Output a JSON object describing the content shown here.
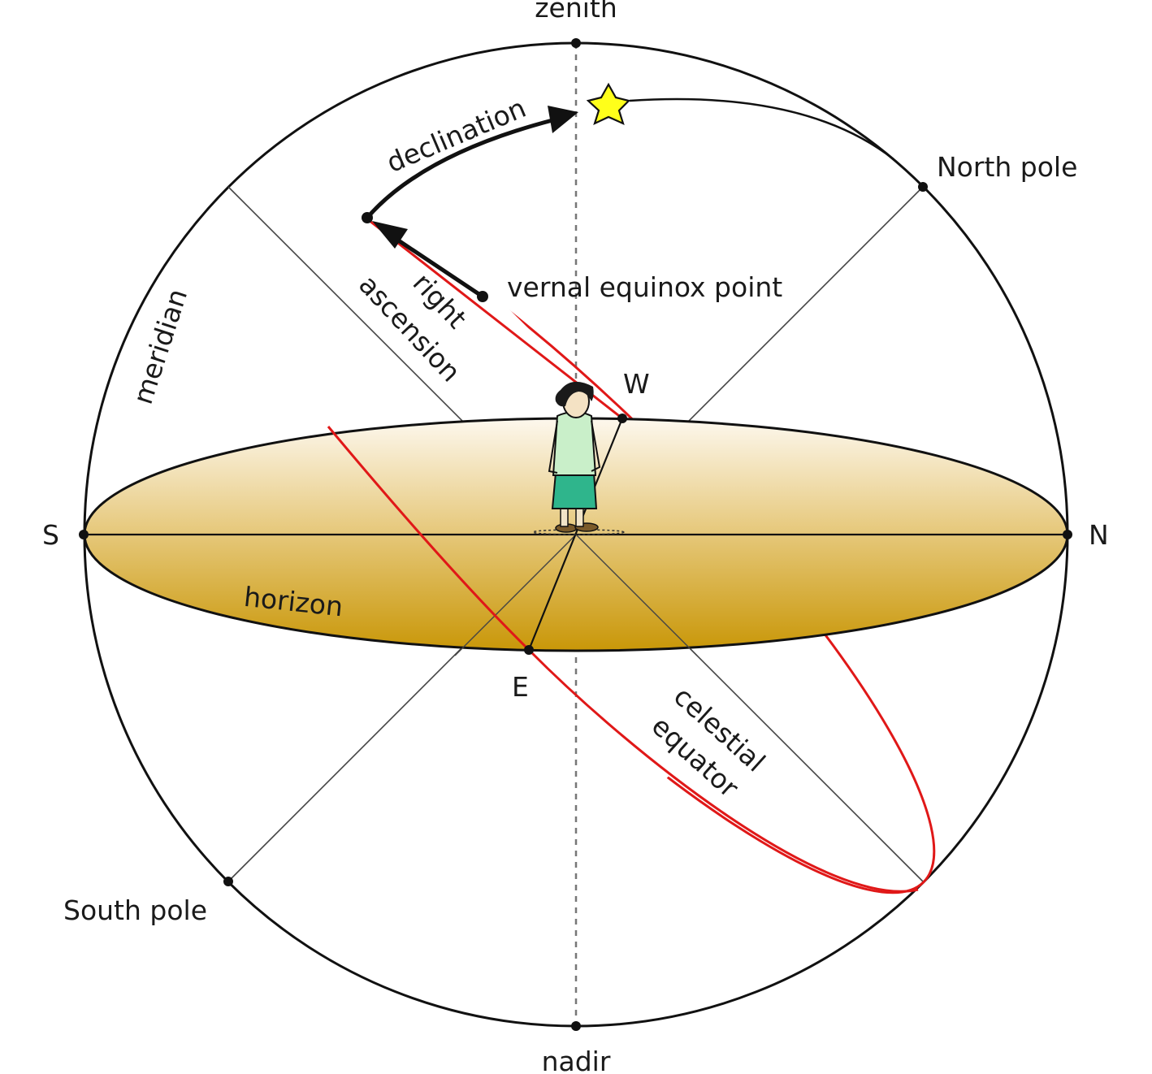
{
  "labels": {
    "zenith": "zenith",
    "nadir": "nadir",
    "north_pole": "North pole",
    "south_pole": "South pole",
    "north": "N",
    "south": "S",
    "west": "W",
    "east": "E",
    "meridian": "meridian",
    "horizon": "horizon",
    "celestial_equator_line1": "celestial",
    "celestial_equator_line2": "equator",
    "vernal_equinox_point": "vernal equinox point",
    "right_ascension_line1": "right",
    "right_ascension_line2": "ascension",
    "declination": "declination"
  },
  "icons": {
    "star": "star-icon",
    "observer": "observer-figure"
  },
  "colors": {
    "outline": "#111111",
    "celestial_equator": "#e01818",
    "horizon_fill_top": "#fdf8ee",
    "horizon_fill_bottom": "#c99708",
    "star_fill": "#ffff1a",
    "axis_line": "#444444"
  }
}
